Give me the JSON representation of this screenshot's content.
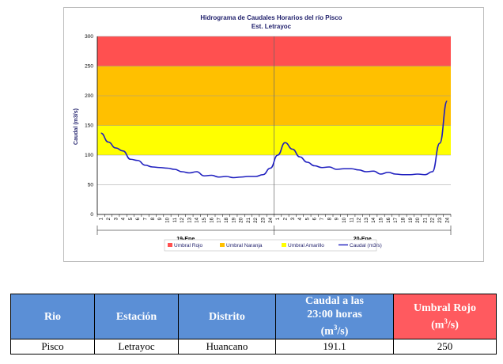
{
  "chart_data": {
    "type": "line",
    "title": "Hidrograma de Caudales Horarios del río Pisco",
    "subtitle": "Est. Letrayoc",
    "ylabel": "Caudal  (m3/s)",
    "ylim": [
      0,
      300
    ],
    "yticks": [
      0,
      50,
      100,
      150,
      200,
      250,
      300
    ],
    "x_tick_labels": [
      "1",
      "2",
      "3",
      "4",
      "5",
      "6",
      "7",
      "8",
      "9",
      "10",
      "11",
      "12",
      "13",
      "14",
      "15",
      "16",
      "17",
      "18",
      "19",
      "20",
      "21",
      "22",
      "23",
      "24",
      "1",
      "2",
      "3",
      "4",
      "5",
      "6",
      "7",
      "8",
      "9",
      "10",
      "11",
      "12",
      "13",
      "14",
      "15",
      "16",
      "17",
      "18",
      "19",
      "20",
      "21",
      "22",
      "23",
      "24"
    ],
    "day_groups": [
      "19-Ene",
      "20-Ene"
    ],
    "thresholds": [
      {
        "name": "Umbral Rojo",
        "from": 250,
        "to": 300,
        "color": "#ff5050"
      },
      {
        "name": "Umbral Naranja",
        "from": 150,
        "to": 250,
        "color": "#ffc000"
      },
      {
        "name": "Umbral Amarillo",
        "from": 100,
        "to": 150,
        "color": "#ffff00"
      }
    ],
    "series": [
      {
        "name": "Caudal (m3/s)",
        "color": "#1f1fbf",
        "values": [
          137,
          122,
          112,
          107,
          93,
          91,
          83,
          80,
          79,
          78,
          76,
          72,
          70,
          72,
          65,
          66,
          63,
          64,
          62,
          63,
          64,
          64,
          67,
          78,
          100,
          121,
          110,
          97,
          88,
          82,
          79,
          80,
          76,
          77,
          77,
          75,
          72,
          73,
          68,
          71,
          68,
          67,
          67,
          68,
          67,
          72,
          120,
          191
        ]
      }
    ],
    "legend": [
      "Umbral Rojo",
      "Umbral Naranja",
      "Umbral Amarillo",
      "Caudal (m3/s)"
    ],
    "legend_position": "bottom"
  },
  "table": {
    "headers": {
      "rio": "Rio",
      "estacion": "Estación",
      "distrito": "Distrito",
      "caudal_line1": "Caudal a las",
      "caudal_line2": "23:00 horas",
      "caudal_unit": "(m",
      "caudal_unit_sup": "3",
      "caudal_unit_end": "/s)",
      "umbral_line1": "Umbral Rojo",
      "umbral_unit": "(m",
      "umbral_unit_sup": "3",
      "umbral_unit_end": "/s)"
    },
    "row": {
      "rio": "Pisco",
      "estacion": "Letrayoc",
      "distrito": "Huancano",
      "caudal": "191.1",
      "umbral": "250"
    }
  }
}
